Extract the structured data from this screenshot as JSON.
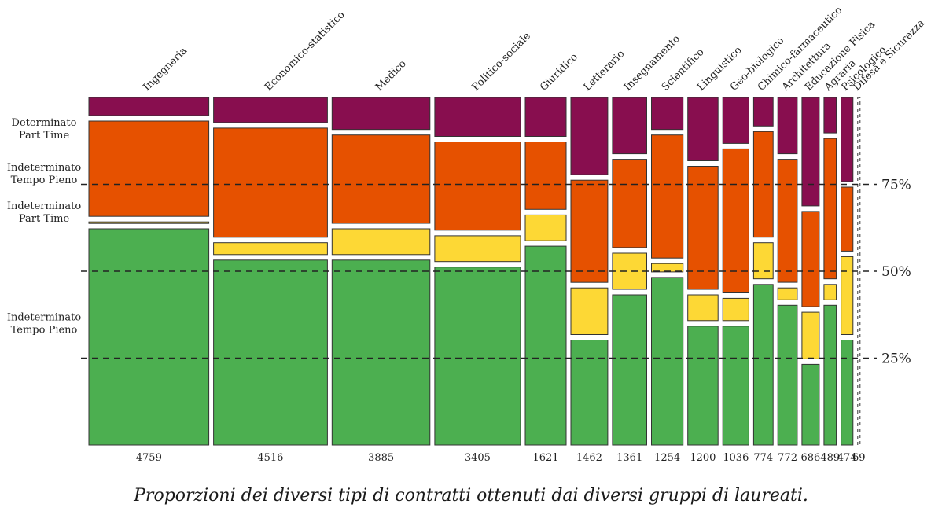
{
  "caption": "Proporzioni dei diversi tipi di contratti ottenuti dai diversi gruppi di laureati.",
  "colors": {
    "indeterminato_tempo_pieno": "#4caf50",
    "indeterminato_part_time": "#fdd835",
    "determinato_tempo_pieno": "#e65100",
    "determinato_part_time": "#880e4f",
    "border": "#333333",
    "pct_axis_line": "#2e5e3a"
  },
  "chart_data": {
    "type": "mosaic",
    "title": "",
    "categories": [
      "Ingegneria",
      "Economico-statistico",
      "Medico",
      "Politico-sociale",
      "Giuridico",
      "Letterario",
      "Insegnamento",
      "Scientifico",
      "Linguistico",
      "Geo-biologico",
      "Chimico-farmaceutico",
      "Architettura",
      "Educazione Fisica",
      "Agraria",
      "Psicologico",
      "Difesa e Sicurezza"
    ],
    "counts": [
      4759,
      4516,
      3885,
      3405,
      1621,
      1462,
      1361,
      1254,
      1200,
      1036,
      774,
      772,
      686,
      489,
      474,
      69
    ],
    "stack_order": [
      "Indeterminato Tempo Pieno",
      "Indeterminato Part Time",
      "Indeterminato Tempo Pieno",
      "Determinato Part Time"
    ],
    "segment_labels": [
      {
        "line1": "Determinato",
        "line2": "Part Time",
        "pct": 91
      },
      {
        "line1": "Indeterminato",
        "line2": "Tempo Pieno",
        "pct": 78
      },
      {
        "line1": "Indeterminato",
        "line2": "Part Time",
        "pct": 67
      },
      {
        "line1": "Indeterminato",
        "line2": "Tempo Pieno",
        "pct": 35
      }
    ],
    "series": [
      {
        "key": "indeterminato_tempo_pieno",
        "values": [
          63,
          54,
          54,
          52,
          58,
          31,
          44,
          49,
          35,
          35,
          47,
          41,
          24,
          41,
          31,
          0
        ]
      },
      {
        "key": "indeterminato_part_time",
        "values": [
          2,
          5,
          9,
          9,
          9,
          15,
          12,
          4,
          9,
          8,
          12,
          5,
          15,
          6,
          24,
          0
        ]
      },
      {
        "key": "determinato_tempo_pieno",
        "values": [
          29,
          33,
          27,
          27,
          21,
          31,
          27,
          37,
          37,
          43,
          32,
          37,
          29,
          42,
          20,
          0
        ]
      },
      {
        "key": "determinato_part_time",
        "values": [
          6,
          8,
          10,
          12,
          12,
          23,
          17,
          10,
          19,
          14,
          9,
          17,
          32,
          11,
          25,
          100
        ]
      }
    ],
    "y_ticks": [
      {
        "label": "25%",
        "value": 25
      },
      {
        "label": "50%",
        "value": 50
      },
      {
        "label": "75%",
        "value": 75
      }
    ],
    "ylim": [
      0,
      100
    ],
    "grid": "dashed at 25%, 50%, 75%"
  }
}
